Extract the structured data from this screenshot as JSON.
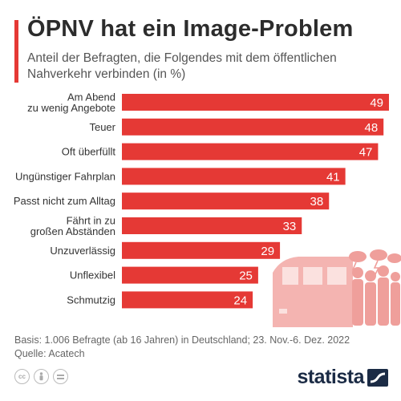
{
  "header": {
    "title": "ÖPNV hat ein Image-Problem",
    "subtitle": "Anteil der Befragten, die Folgendes mit dem öffentlichen Nahverkehr verbinden (in %)"
  },
  "colors": {
    "accent": "#e53935",
    "bar": "#e53935",
    "illustration": "#f2a9a6"
  },
  "chart_data": {
    "type": "bar",
    "orientation": "horizontal",
    "categories": [
      "Am Abend\nzu wenig Angebote",
      "Teuer",
      "Oft überfüllt",
      "Ungünstiger Fahrplan",
      "Passt nicht zum Alltag",
      "Fährt in zu\ngroßen Abständen",
      "Unzuverlässig",
      "Unflexibel",
      "Schmutzig"
    ],
    "values": [
      49,
      48,
      47,
      41,
      38,
      33,
      29,
      25,
      24
    ],
    "xlim": [
      0,
      49
    ],
    "grid": false,
    "legend": "none"
  },
  "footer": {
    "basis": "Basis: 1.006 Befragte (ab 16 Jahren) in Deutschland; 23. Nov.-6. Dez. 2022",
    "source": "Quelle: Acatech"
  },
  "brand": {
    "name": "statista"
  },
  "icons": [
    "cc-icon",
    "person-icon",
    "equals-icon",
    "statista-logo-icon",
    "train-illustration",
    "commuters-illustration",
    "storm-cloud-icon"
  ]
}
